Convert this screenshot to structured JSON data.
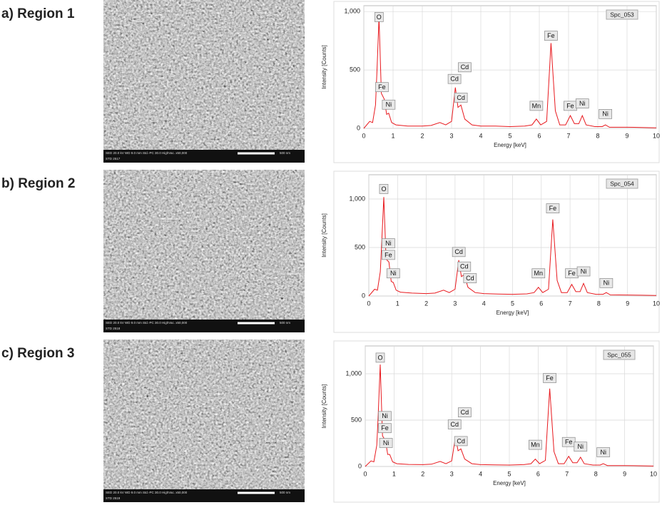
{
  "panels": [
    {
      "label": "a) Region 1",
      "sem_info": "SED 20.0 kV WD 9.0 mm Std.-PC 30.0 HighVac. x50,000",
      "scale_bar": "500 nm",
      "std": "STD 2517"
    },
    {
      "label": "b) Region 2",
      "sem_info": "SED 20.0 kV WD 9.0 mm Std.-PC 30.0 HighVac. x50,000",
      "scale_bar": "500 nm",
      "std": "STD 2518"
    },
    {
      "label": "c) Region 3",
      "sem_info": "SED 20.0 kV WD 9.0 mm Std.-PC 30.0 HighVac. x50,000",
      "scale_bar": "500 nm",
      "std": "STD 2519"
    }
  ],
  "chart_data": [
    {
      "type": "line",
      "spectrum": "Spc_053",
      "xlabel": "Energy [keV]",
      "ylabel": "Intensity [Counts]",
      "x": [
        0,
        0.2,
        0.3,
        0.4,
        0.45,
        0.52,
        0.6,
        0.7,
        0.78,
        0.85,
        0.95,
        1.1,
        1.5,
        2,
        2.3,
        2.6,
        2.8,
        3.0,
        3.13,
        3.22,
        3.32,
        3.45,
        3.7,
        4,
        4.5,
        5,
        5.5,
        5.75,
        5.9,
        6.05,
        6.25,
        6.4,
        6.55,
        6.7,
        6.9,
        7.06,
        7.2,
        7.35,
        7.47,
        7.6,
        7.9,
        8.15,
        8.26,
        8.4,
        9,
        9.5,
        10
      ],
      "series": [
        {
          "color": "#e8191e",
          "values": [
            0,
            60,
            50,
            200,
            500,
            950,
            300,
            250,
            120,
            130,
            50,
            30,
            20,
            20,
            25,
            50,
            30,
            60,
            350,
            180,
            200,
            80,
            30,
            20,
            20,
            15,
            20,
            30,
            80,
            30,
            60,
            730,
            150,
            30,
            30,
            110,
            40,
            40,
            110,
            30,
            15,
            15,
            30,
            10,
            10,
            8,
            5
          ]
        }
      ],
      "xlim": [
        0,
        10
      ],
      "ylim": [
        0,
        1050
      ],
      "xticks": [
        0,
        1,
        2,
        3,
        4,
        5,
        6,
        7,
        8,
        9,
        10
      ],
      "yticks": [
        0,
        500,
        {
          "value": 1000,
          "label": "1,000"
        }
      ],
      "grid": true,
      "annotations": [
        {
          "text": "O",
          "x": 0.52,
          "y": 950
        },
        {
          "text": "Fe",
          "x": 0.62,
          "y": 350
        },
        {
          "text": "Ni",
          "x": 0.85,
          "y": 200
        },
        {
          "text": "Cd",
          "x": 3.1,
          "y": 420
        },
        {
          "text": "Cd",
          "x": 3.45,
          "y": 520
        },
        {
          "text": "Cd",
          "x": 3.32,
          "y": 260
        },
        {
          "text": "Mn",
          "x": 5.9,
          "y": 190
        },
        {
          "text": "Fe",
          "x": 6.4,
          "y": 790
        },
        {
          "text": "Fe",
          "x": 7.06,
          "y": 190
        },
        {
          "text": "Ni",
          "x": 7.47,
          "y": 210
        },
        {
          "text": "Ni",
          "x": 8.26,
          "y": 120
        }
      ]
    },
    {
      "type": "line",
      "spectrum": "Spc_054",
      "xlabel": "Energy [keV]",
      "ylabel": "Intensity [Counts]",
      "x": [
        0,
        0.2,
        0.3,
        0.4,
        0.45,
        0.52,
        0.6,
        0.7,
        0.78,
        0.85,
        0.95,
        1.1,
        1.5,
        2,
        2.3,
        2.6,
        2.8,
        3.0,
        3.13,
        3.22,
        3.32,
        3.45,
        3.7,
        4,
        4.5,
        5,
        5.5,
        5.75,
        5.9,
        6.05,
        6.25,
        6.4,
        6.55,
        6.7,
        6.9,
        7.06,
        7.2,
        7.35,
        7.47,
        7.6,
        7.9,
        8.15,
        8.26,
        8.4,
        9,
        9.5,
        10
      ],
      "series": [
        {
          "color": "#e8191e",
          "values": [
            0,
            70,
            60,
            250,
            550,
            1020,
            380,
            350,
            150,
            140,
            60,
            40,
            30,
            25,
            30,
            60,
            35,
            70,
            370,
            200,
            220,
            90,
            35,
            25,
            20,
            18,
            22,
            35,
            90,
            35,
            70,
            790,
            160,
            35,
            35,
            120,
            45,
            45,
            130,
            35,
            18,
            18,
            35,
            12,
            10,
            8,
            5
          ]
        }
      ],
      "xlim": [
        0,
        10
      ],
      "ylim": [
        0,
        1250
      ],
      "xticks": [
        0,
        1,
        2,
        3,
        4,
        5,
        6,
        7,
        8,
        9,
        10
      ],
      "yticks": [
        0,
        500,
        {
          "value": 1000,
          "label": "1,000"
        }
      ],
      "grid": true,
      "annotations": [
        {
          "text": "O",
          "x": 0.52,
          "y": 1100
        },
        {
          "text": "Ni",
          "x": 0.68,
          "y": 540
        },
        {
          "text": "Fe",
          "x": 0.68,
          "y": 420
        },
        {
          "text": "Ni",
          "x": 0.85,
          "y": 230
        },
        {
          "text": "Cd",
          "x": 3.13,
          "y": 450
        },
        {
          "text": "Cd",
          "x": 3.32,
          "y": 300
        },
        {
          "text": "Cd",
          "x": 3.52,
          "y": 180
        },
        {
          "text": "Mn",
          "x": 5.9,
          "y": 230
        },
        {
          "text": "Fe",
          "x": 6.4,
          "y": 900
        },
        {
          "text": "Fe",
          "x": 7.06,
          "y": 230
        },
        {
          "text": "Ni",
          "x": 7.47,
          "y": 250
        },
        {
          "text": "Ni",
          "x": 8.26,
          "y": 130
        }
      ]
    },
    {
      "type": "line",
      "spectrum": "Spc_055",
      "xlabel": "Energy [keV]",
      "ylabel": "Intensity [Counts]",
      "x": [
        0,
        0.2,
        0.3,
        0.4,
        0.45,
        0.52,
        0.6,
        0.7,
        0.78,
        0.85,
        0.95,
        1.1,
        1.5,
        2,
        2.3,
        2.6,
        2.8,
        3.0,
        3.13,
        3.22,
        3.32,
        3.45,
        3.7,
        4,
        4.5,
        5,
        5.5,
        5.75,
        5.9,
        6.05,
        6.25,
        6.4,
        6.55,
        6.7,
        6.9,
        7.06,
        7.2,
        7.35,
        7.47,
        7.6,
        7.9,
        8.15,
        8.26,
        8.4,
        9,
        9.5,
        10
      ],
      "series": [
        {
          "color": "#e8191e",
          "values": [
            0,
            60,
            50,
            230,
            560,
            1100,
            330,
            280,
            130,
            130,
            50,
            30,
            22,
            20,
            25,
            55,
            30,
            60,
            320,
            170,
            190,
            80,
            30,
            20,
            18,
            15,
            20,
            30,
            80,
            30,
            65,
            840,
            160,
            30,
            30,
            110,
            40,
            40,
            100,
            30,
            15,
            15,
            30,
            10,
            10,
            8,
            5
          ]
        }
      ],
      "xlim": [
        0,
        10
      ],
      "ylim": [
        0,
        1300
      ],
      "xticks": [
        0,
        1,
        2,
        3,
        4,
        5,
        6,
        7,
        8,
        9,
        10
      ],
      "yticks": [
        0,
        500,
        {
          "value": 1000,
          "label": "1,000"
        }
      ],
      "grid": true,
      "annotations": [
        {
          "text": "O",
          "x": 0.52,
          "y": 1170
        },
        {
          "text": "Ni",
          "x": 0.68,
          "y": 540
        },
        {
          "text": "Fe",
          "x": 0.68,
          "y": 410
        },
        {
          "text": "Ni",
          "x": 0.72,
          "y": 250
        },
        {
          "text": "Cd",
          "x": 3.1,
          "y": 450
        },
        {
          "text": "Cd",
          "x": 3.45,
          "y": 580
        },
        {
          "text": "Cd",
          "x": 3.32,
          "y": 270
        },
        {
          "text": "Mn",
          "x": 5.9,
          "y": 230
        },
        {
          "text": "Fe",
          "x": 6.4,
          "y": 950
        },
        {
          "text": "Fe",
          "x": 7.06,
          "y": 260
        },
        {
          "text": "Ni",
          "x": 7.47,
          "y": 210
        },
        {
          "text": "Ni",
          "x": 8.26,
          "y": 150
        }
      ]
    }
  ]
}
